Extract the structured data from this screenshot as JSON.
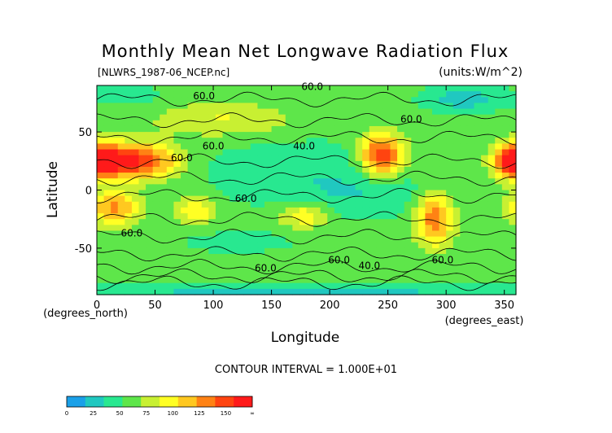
{
  "title": "Monthly Mean Net Longwave Radiation Flux",
  "file_label": "[NLWRS_1987-06_NCEP.nc]",
  "units_label": "(units:W/m^2)",
  "contour_interval_label": "CONTOUR INTERVAL = 1.000E+01",
  "chart_data": {
    "type": "heatmap",
    "title": "Monthly Mean Net Longwave Radiation Flux",
    "xlabel": "Longitude",
    "ylabel": "Latitude",
    "x_unit_label": "(degrees_east)",
    "y_unit_label": "(degrees_north)",
    "xlim": [
      0,
      360
    ],
    "ylim": [
      -90,
      90
    ],
    "x_ticks": [
      0,
      50,
      100,
      150,
      200,
      250,
      300,
      350
    ],
    "y_ticks": [
      -50,
      0,
      50
    ],
    "contour_labels": [
      {
        "text": "60.0",
        "lon": 185,
        "lat": 86
      },
      {
        "text": "60.0",
        "lon": 92,
        "lat": 78
      },
      {
        "text": "60.0",
        "lon": 270,
        "lat": 58
      },
      {
        "text": "40.0",
        "lon": 178,
        "lat": 35
      },
      {
        "text": "60.0",
        "lon": 100,
        "lat": 35
      },
      {
        "text": "60.0",
        "lon": 73,
        "lat": 25
      },
      {
        "text": "60.0",
        "lon": 128,
        "lat": -10
      },
      {
        "text": "60.0",
        "lon": 30,
        "lat": -40
      },
      {
        "text": "60.0",
        "lon": 208,
        "lat": -63
      },
      {
        "text": "40.0",
        "lon": 234,
        "lat": -68
      },
      {
        "text": "60.0",
        "lon": 145,
        "lat": -70
      },
      {
        "text": "60.0",
        "lon": 297,
        "lat": -63
      }
    ],
    "colorbar": {
      "colors": [
        "#1aa0e8",
        "#20c8c0",
        "#28e890",
        "#5ee64a",
        "#c8f032",
        "#ffff24",
        "#ffc820",
        "#ff8214",
        "#ff4410",
        "#ff1a1a"
      ],
      "tick_labels": [
        "0",
        "25",
        "50",
        "75",
        "100",
        "125",
        "150",
        "∞"
      ],
      "tick_values": [
        0,
        25,
        50,
        75,
        100,
        125,
        150,
        200
      ]
    },
    "grid_nx": 60,
    "grid_ny": 36
  }
}
